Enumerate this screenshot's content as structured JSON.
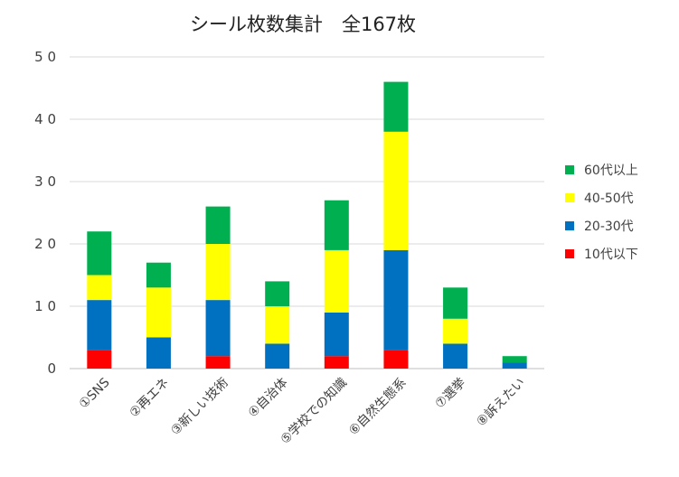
{
  "chart_data": {
    "type": "bar",
    "stacked": true,
    "title": "シール枚数集計　全167枚",
    "xlabel": "",
    "ylabel": "",
    "ylim": [
      0,
      50
    ],
    "yticks": [
      0,
      10,
      20,
      30,
      40,
      50
    ],
    "ytick_labels": [
      "0",
      "1 0",
      "2 0",
      "3 0",
      "4 0",
      "5 0"
    ],
    "grid": true,
    "legend_position": "right",
    "categories": [
      "①SNS",
      "②再エネ",
      "③新しい技術",
      "④自治体",
      "⑤学校での知識",
      "⑥自然生態系",
      "⑦選挙",
      "⑧訴えたい"
    ],
    "series": [
      {
        "name": "10代以下",
        "color": "#ff0000",
        "values": [
          3,
          0,
          2,
          0,
          2,
          3,
          0,
          0
        ]
      },
      {
        "name": "20-30代",
        "color": "#0070c0",
        "values": [
          8,
          5,
          9,
          4,
          7,
          16,
          4,
          1
        ]
      },
      {
        "name": "40-50代",
        "color": "#ffff00",
        "values": [
          4,
          8,
          9,
          6,
          10,
          19,
          4,
          0
        ]
      },
      {
        "name": "60代以上",
        "color": "#00b050",
        "values": [
          7,
          4,
          6,
          4,
          8,
          8,
          5,
          1
        ]
      }
    ],
    "legend_order": [
      "60代以上",
      "40-50代",
      "20-30代",
      "10代以下"
    ]
  }
}
